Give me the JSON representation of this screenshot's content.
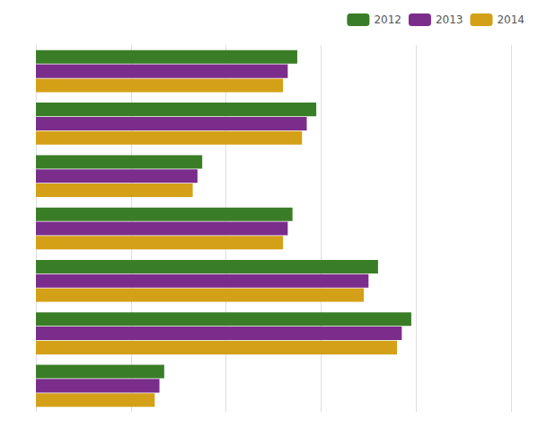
{
  "chart_data": {
    "type": "bar",
    "orientation": "horizontal",
    "categories": [
      null,
      null,
      null,
      null,
      null,
      null,
      null
    ],
    "series": [
      {
        "name": "2012",
        "color": "#3a7d27",
        "values": [
          27.5,
          29.5,
          17.5,
          27.0,
          36.0,
          39.5,
          13.5
        ]
      },
      {
        "name": "2013",
        "color": "#7b2d8b",
        "values": [
          26.5,
          28.5,
          17.0,
          26.5,
          35.0,
          38.5,
          13.0
        ]
      },
      {
        "name": "2014",
        "color": "#d4a017",
        "values": [
          26.0,
          28.0,
          16.5,
          26.0,
          34.5,
          38.0,
          12.5
        ]
      }
    ],
    "xlim": [
      0,
      50
    ],
    "xticks": [
      0,
      10,
      20,
      30,
      40,
      50
    ],
    "grid": true,
    "legend": "upper right",
    "tick_labels": false
  }
}
